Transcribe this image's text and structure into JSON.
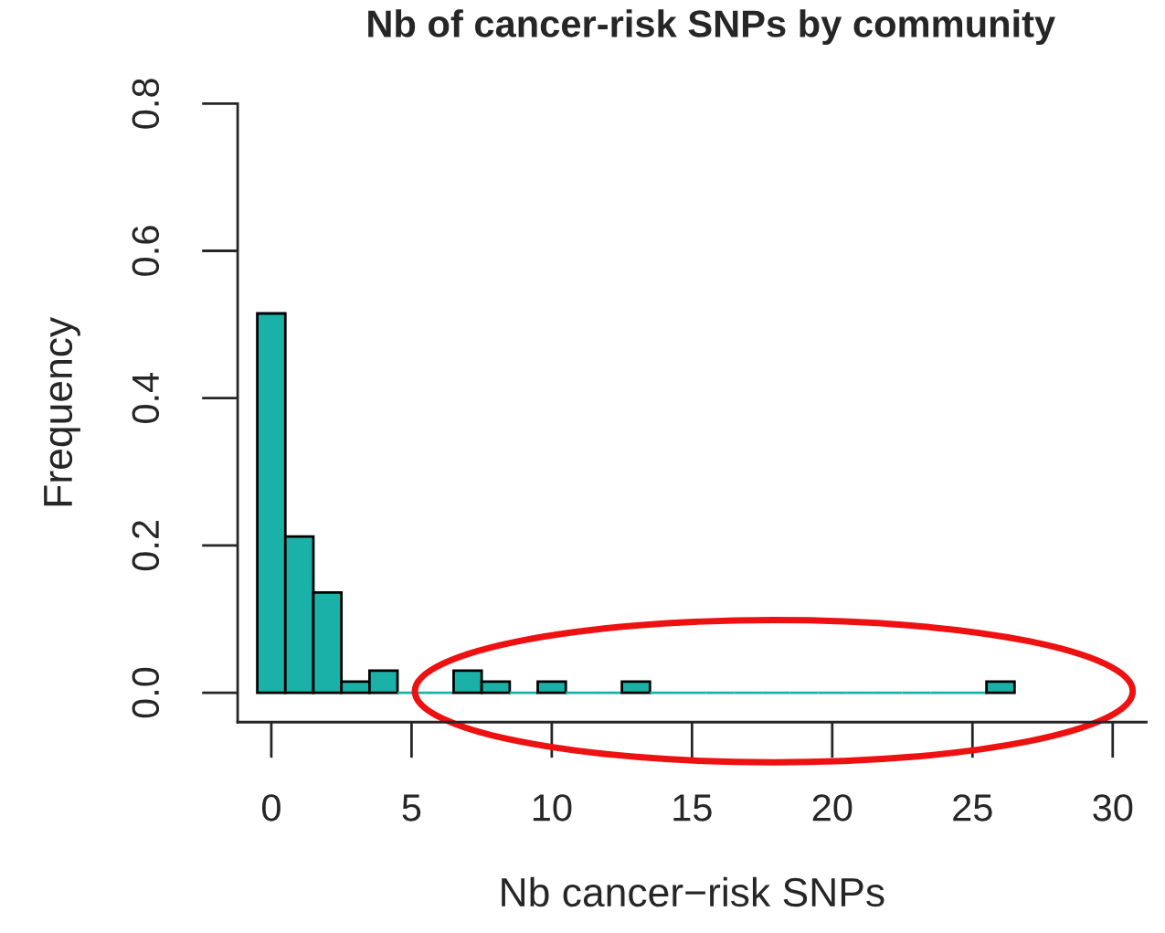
{
  "chart_data": {
    "type": "histogram",
    "title": "Nb of cancer-risk SNPs by community",
    "xlabel": "Nb cancer−risk SNPs",
    "ylabel": "Frequency",
    "bins": [
      -0.5,
      0.5,
      1.5,
      2.5,
      3.5,
      4.5,
      5.5,
      6.5,
      7.5,
      8.5,
      9.5,
      10.5,
      11.5,
      12.5,
      13.5,
      14.5,
      15.5,
      16.5,
      17.5,
      18.5,
      19.5,
      20.5,
      21.5,
      22.5,
      23.5,
      24.5,
      25.5,
      26.5
    ],
    "values": [
      0.515,
      0.212,
      0.136,
      0.015,
      0.03,
      0,
      0,
      0.03,
      0.015,
      0,
      0.015,
      0,
      0,
      0.015,
      0,
      0,
      0,
      0,
      0,
      0,
      0,
      0,
      0,
      0,
      0,
      0,
      0.015
    ],
    "color": "#1ab2a8",
    "xlim": [
      -1.2,
      31.2
    ],
    "xticks": [
      0,
      5,
      10,
      15,
      20,
      25,
      30
    ],
    "ylim": [
      -0.04,
      0.8
    ],
    "yticks": [
      {
        "value": 0,
        "label": "0.0"
      },
      0.2,
      0.4,
      0.6,
      0.8
    ],
    "grid": false
  }
}
